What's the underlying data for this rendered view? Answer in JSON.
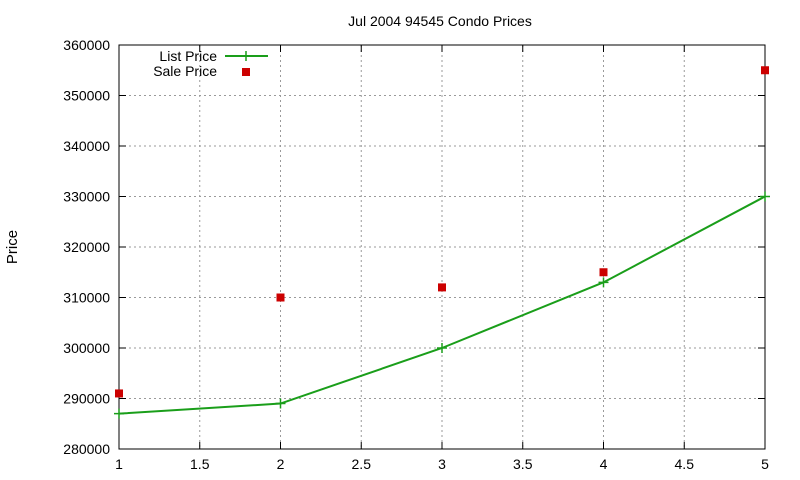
{
  "chart_data": {
    "type": "line",
    "title": "Jul 2004 94545 Condo Prices",
    "xlabel": "",
    "ylabel": "Price",
    "xlim": [
      1,
      5
    ],
    "ylim": [
      280000,
      360000
    ],
    "x_ticks": [
      "1",
      "1.5",
      "2",
      "2.5",
      "3",
      "3.5",
      "4",
      "4.5",
      "5"
    ],
    "y_ticks": [
      "280000",
      "290000",
      "300000",
      "310000",
      "320000",
      "330000",
      "340000",
      "350000",
      "360000"
    ],
    "grid": true,
    "legend_position": "top-left",
    "series": [
      {
        "name": "List Price",
        "style": "line-with-plus-markers",
        "color": "#1a9e1a",
        "x": [
          1,
          2,
          3,
          4,
          5
        ],
        "y": [
          287000,
          289000,
          300000,
          313000,
          330000
        ]
      },
      {
        "name": "Sale Price",
        "style": "square-markers",
        "color": "#cc0000",
        "x": [
          1,
          2,
          3,
          4,
          5
        ],
        "y": [
          291000,
          310000,
          312000,
          315000,
          355000
        ]
      }
    ]
  }
}
